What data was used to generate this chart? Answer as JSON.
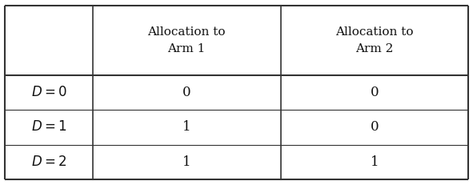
{
  "col_headers": [
    "",
    "Allocation to\nArm 1",
    "Allocation to\nArm 2"
  ],
  "row_labels": [
    "$D = 0$",
    "$D = 1$",
    "$D = 2$"
  ],
  "cell_values": [
    [
      "0",
      "0"
    ],
    [
      "1",
      "0"
    ],
    [
      "1",
      "1"
    ]
  ],
  "background_color": "#ffffff",
  "border_color": "#333333",
  "text_color": "#111111",
  "header_fontsize": 11,
  "cell_fontsize": 12,
  "label_fontsize": 12
}
